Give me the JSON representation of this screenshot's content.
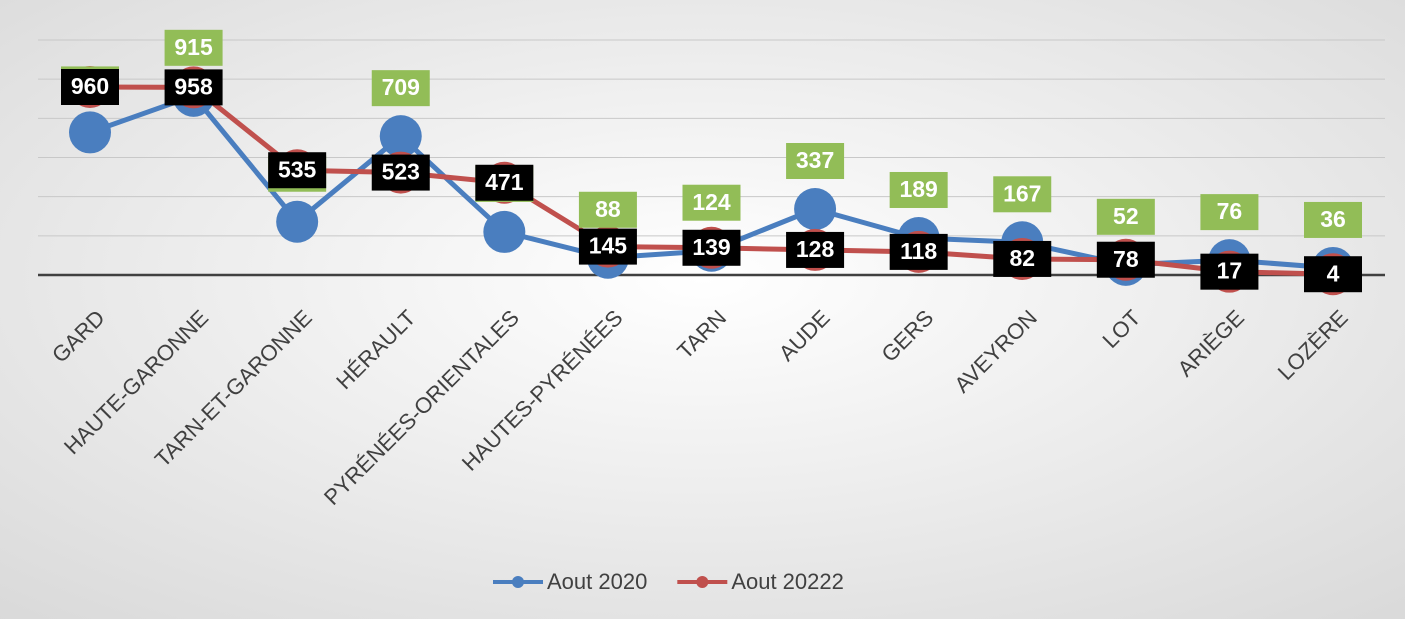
{
  "chart_data": {
    "type": "line",
    "categories": [
      "GARD",
      "HAUTE-GARONNE",
      "TARN-ET-GARONNE",
      "HÉRAULT",
      "PYRÉNÉES-ORIENTALES",
      "HAUTES-PYRÉNÉES",
      "TARN",
      "AUDE",
      "GERS",
      "AVEYRON",
      "LOT",
      "ARIÈGE",
      "LOZÈRE"
    ],
    "series": [
      {
        "name": "Aout 2020",
        "color": "#4a7ebf",
        "label_color": "#92bd57",
        "values": [
          728,
          915,
          272,
          709,
          220,
          88,
          124,
          337,
          189,
          167,
          52,
          76,
          36
        ]
      },
      {
        "name": "Aout 20222",
        "color": "#c0504d",
        "label_color": "#000000",
        "values": [
          960,
          958,
          535,
          523,
          471,
          145,
          139,
          128,
          118,
          82,
          78,
          17,
          4
        ]
      }
    ],
    "ylim": [
      0,
      1200
    ],
    "yticks": [
      0,
      200,
      400,
      600,
      800,
      1000,
      1200
    ],
    "grid": true,
    "legend": "bottom"
  }
}
